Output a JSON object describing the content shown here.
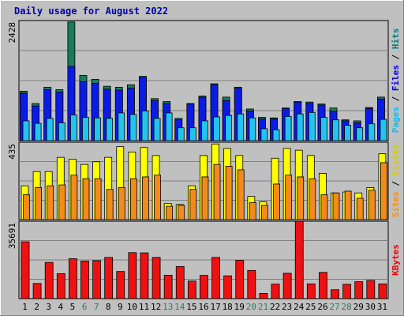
{
  "chart_data": {
    "type": "bar",
    "title": "Daily usage for August 2022",
    "categories": [
      "1",
      "2",
      "3",
      "4",
      "5",
      "6",
      "7",
      "8",
      "9",
      "10",
      "11",
      "12",
      "13",
      "14",
      "15",
      "16",
      "17",
      "18",
      "19",
      "20",
      "21",
      "22",
      "23",
      "24",
      "25",
      "26",
      "27",
      "28",
      "29",
      "30",
      "31"
    ],
    "weekend_days": [
      "6",
      "7",
      "13",
      "14",
      "20",
      "21",
      "27",
      "28"
    ],
    "panels": [
      {
        "name": "hits-files-pages",
        "ymax_label": "2428",
        "ylim": [
          0,
          2428
        ],
        "side_labels": [
          {
            "text": "Pages",
            "color": "#00bfff"
          },
          {
            "text": " / ",
            "color": "#000000"
          },
          {
            "text": "Files",
            "color": "#0000ee"
          },
          {
            "text": " / ",
            "color": "#000000"
          },
          {
            "text": "Hits",
            "color": "#008080"
          }
        ],
        "series": [
          {
            "name": "Hits",
            "color": "#1a7a5a",
            "values": [
              1000,
              750,
              1080,
              1030,
              2400,
              1320,
              1240,
              1100,
              1080,
              1130,
              1300,
              850,
              790,
              450,
              750,
              900,
              1150,
              880,
              1080,
              640,
              470,
              460,
              660,
              790,
              780,
              740,
              660,
              420,
              400,
              670,
              880
            ]
          },
          {
            "name": "Files",
            "color": "#0a1be6",
            "values": [
              960,
              700,
              1030,
              980,
              1500,
              1190,
              1160,
              1040,
              1020,
              1060,
              1280,
              810,
              750,
              420,
              740,
              880,
              1130,
              810,
              1060,
              600,
              440,
              440,
              650,
              780,
              750,
              720,
              590,
              400,
              360,
              650,
              840
            ]
          },
          {
            "name": "Pages",
            "color": "#22c3ef",
            "values": [
              400,
              350,
              450,
              360,
              520,
              470,
              460,
              450,
              560,
              530,
              600,
              450,
              560,
              260,
              260,
              400,
              480,
              510,
              540,
              460,
              240,
              220,
              490,
              540,
              570,
              470,
              420,
              310,
              260,
              340,
              430
            ]
          }
        ]
      },
      {
        "name": "visits-sites",
        "ymax_label": "435",
        "ylim": [
          0,
          435
        ],
        "side_labels": [
          {
            "text": "Sites",
            "color": "#ff8c00"
          },
          {
            "text": " / ",
            "color": "#000000"
          },
          {
            "text": "Visits",
            "color": "#d6cc00"
          }
        ],
        "series": [
          {
            "name": "Visits",
            "color": "#ffff00",
            "values": [
              190,
              270,
              270,
              350,
              340,
              310,
              325,
              350,
              410,
              380,
              405,
              360,
              90,
              85,
              190,
              360,
              425,
              400,
              360,
              130,
              100,
              345,
              400,
              390,
              360,
              260,
              150,
              155,
              150,
              180,
              370
            ]
          },
          {
            "name": "Sites",
            "color": "#f28a1e",
            "values": [
              140,
              180,
              190,
              195,
              250,
              230,
              230,
              170,
              180,
              230,
              240,
              250,
              75,
              80,
              170,
              240,
              310,
              300,
              280,
              95,
              80,
              200,
              250,
              240,
              230,
              140,
              150,
              160,
              120,
              165,
              320
            ]
          }
        ]
      },
      {
        "name": "kbytes",
        "ymax_label": "35691",
        "ylim": [
          0,
          35691
        ],
        "side_labels": [
          {
            "text": "KBytes",
            "color": "#ee0000"
          }
        ],
        "series": [
          {
            "name": "KBytes",
            "color": "#ee1111",
            "values": [
              26200,
              7000,
              16700,
              11500,
              18400,
              17300,
              17500,
              19000,
              12500,
              21200,
              21100,
              19000,
              10800,
              14800,
              8100,
              10700,
              19000,
              10500,
              17700,
              13000,
              2400,
              6700,
              11700,
              35691,
              6800,
              12100,
              4100,
              6600,
              7800,
              8400,
              6800
            ]
          }
        ]
      }
    ]
  }
}
